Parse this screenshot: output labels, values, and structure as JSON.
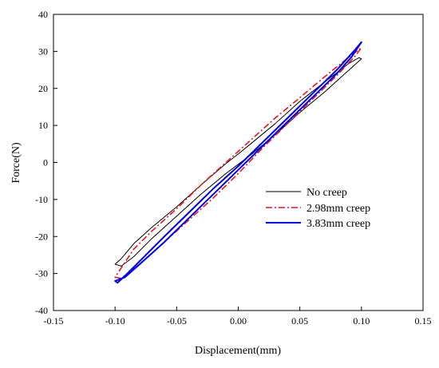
{
  "chart_data": {
    "type": "line",
    "title": "",
    "xlabel": "Displacement(mm)",
    "ylabel": "Force(N)",
    "xlim": [
      -0.15,
      0.15
    ],
    "ylim": [
      -40,
      40
    ],
    "xticks": [
      -0.15,
      -0.1,
      -0.05,
      0.0,
      0.05,
      0.1,
      0.15
    ],
    "xtick_labels": [
      "-0.15",
      "-0.10",
      "-0.05",
      "0.00",
      "0.05",
      "0.10",
      "0.15"
    ],
    "yticks": [
      -40,
      -30,
      -20,
      -10,
      0,
      10,
      20,
      30,
      40
    ],
    "ytick_labels": [
      "-40",
      "-30",
      "-20",
      "-10",
      "0",
      "10",
      "20",
      "30",
      "40"
    ],
    "grid": false,
    "legend_position": "center-right",
    "series": [
      {
        "name": "No creep",
        "color": "#000000",
        "style": "solid",
        "x": [
          -0.1,
          -0.095,
          -0.085,
          -0.07,
          -0.05,
          -0.03,
          -0.01,
          0.0,
          0.01,
          0.03,
          0.05,
          0.07,
          0.085,
          0.095,
          0.1,
          0.098,
          0.09,
          0.075,
          0.05,
          0.03,
          0.01,
          0.0,
          -0.01,
          -0.03,
          -0.05,
          -0.07,
          -0.085,
          -0.095,
          -0.1
        ],
        "y": [
          -27.5,
          -28.0,
          -25.5,
          -20.5,
          -14.5,
          -8.5,
          -3.0,
          -0.5,
          2.0,
          7.5,
          13.5,
          19.0,
          23.5,
          26.5,
          28.0,
          28.3,
          26.8,
          23.0,
          16.5,
          10.5,
          5.0,
          2.3,
          -0.3,
          -6.0,
          -12.0,
          -17.5,
          -22.0,
          -26.0,
          -27.5
        ]
      },
      {
        "name": "2.98mm creep",
        "color": "#e8141e",
        "style": "dashdot",
        "x": [
          -0.1,
          -0.095,
          -0.08,
          -0.06,
          -0.04,
          -0.02,
          0.0,
          0.02,
          0.04,
          0.06,
          0.08,
          0.095,
          0.1,
          0.098,
          0.09,
          0.075,
          0.05,
          0.03,
          0.01,
          0.0,
          -0.01,
          -0.03,
          -0.05,
          -0.07,
          -0.085,
          -0.095,
          -0.1
        ],
        "y": [
          -31.0,
          -31.3,
          -27.5,
          -21.5,
          -15.5,
          -9.5,
          -3.0,
          4.0,
          10.5,
          17.0,
          23.5,
          28.8,
          31.0,
          30.5,
          28.5,
          24.5,
          17.5,
          12.0,
          6.0,
          3.0,
          0.0,
          -6.0,
          -12.5,
          -18.5,
          -23.5,
          -28.5,
          -31.0
        ]
      },
      {
        "name": "3.83mm creep",
        "color": "#0000e6",
        "style": "solid",
        "x": [
          -0.1,
          -0.098,
          -0.09,
          -0.075,
          -0.06,
          -0.04,
          -0.02,
          0.0,
          0.02,
          0.04,
          0.06,
          0.08,
          0.095,
          0.1,
          0.099,
          0.092,
          0.08,
          0.06,
          0.04,
          0.02,
          0.0,
          -0.02,
          -0.04,
          -0.06,
          -0.08,
          -0.092,
          -0.1
        ],
        "y": [
          -32.0,
          -32.5,
          -30.0,
          -25.0,
          -20.0,
          -13.5,
          -7.0,
          -1.0,
          5.5,
          12.0,
          18.5,
          25.0,
          30.5,
          32.5,
          32.0,
          28.5,
          24.0,
          17.5,
          11.0,
          4.5,
          -2.0,
          -8.5,
          -15.0,
          -21.5,
          -27.5,
          -31.0,
          -32.0
        ]
      }
    ]
  }
}
